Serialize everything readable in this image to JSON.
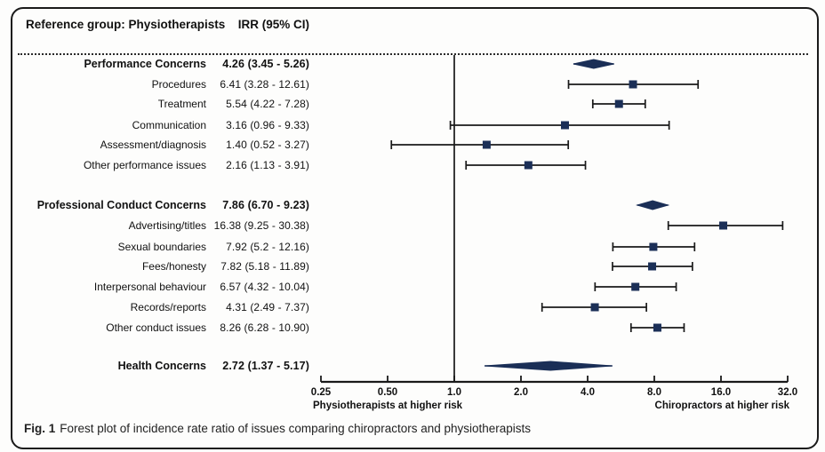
{
  "header": {
    "reference_label": "Reference group: Physiotherapists",
    "irr_label": "IRR (95% CI)"
  },
  "axis": {
    "tick_labels": [
      "0.25",
      "0.50",
      "1.0",
      "2.0",
      "4.0",
      "8.0",
      "16.0",
      "32.0"
    ],
    "tick_values": [
      0.25,
      0.5,
      1,
      2,
      4,
      8,
      16,
      32
    ],
    "left_label": "Physiotherapists at higher risk",
    "right_label": "Chiropractors at higher risk"
  },
  "caption": {
    "prefix": "Fig. 1",
    "text": "Forest plot of incidence rate ratio of issues comparing chiropractors and physiotherapists"
  },
  "colors": {
    "marker": "#1b2f57",
    "error_bar": "#1a1a1a",
    "axis": "#1a1a1a"
  },
  "chart_data": {
    "type": "forest",
    "x_scale": "log2",
    "xlim": [
      0.25,
      32
    ],
    "reference_value": 1.0,
    "rows": [
      {
        "label": "Performance Concerns",
        "display": "4.26 (3.45 - 5.26)",
        "est": 4.26,
        "lo": 3.45,
        "hi": 5.26,
        "style": "summary"
      },
      {
        "label": "Procedures",
        "display": "6.41 (3.28 - 12.61)",
        "est": 6.41,
        "lo": 3.28,
        "hi": 12.61,
        "style": "item"
      },
      {
        "label": "Treatment",
        "display": "5.54 (4.22 - 7.28)",
        "est": 5.54,
        "lo": 4.22,
        "hi": 7.28,
        "style": "item"
      },
      {
        "label": "Communication",
        "display": "3.16 (0.96 - 9.33)",
        "est": 3.16,
        "lo": 0.96,
        "hi": 9.33,
        "style": "item"
      },
      {
        "label": "Assessment/diagnosis",
        "display": "1.40 (0.52 - 3.27)",
        "est": 1.4,
        "lo": 0.52,
        "hi": 3.27,
        "style": "item"
      },
      {
        "label": "Other performance issues",
        "display": "2.16 (1.13 - 3.91)",
        "est": 2.16,
        "lo": 1.13,
        "hi": 3.91,
        "style": "item"
      },
      {
        "label": "Professional Conduct Concerns",
        "display": "7.86 (6.70 - 9.23)",
        "est": 7.86,
        "lo": 6.7,
        "hi": 9.23,
        "style": "summary"
      },
      {
        "label": "Advertising/titles",
        "display": "16.38 (9.25 - 30.38)",
        "est": 16.38,
        "lo": 9.25,
        "hi": 30.38,
        "style": "item"
      },
      {
        "label": "Sexual boundaries",
        "display": "7.92 (5.2 - 12.16)",
        "est": 7.92,
        "lo": 5.2,
        "hi": 12.16,
        "style": "item"
      },
      {
        "label": "Fees/honesty",
        "display": "7.82 (5.18 - 11.89)",
        "est": 7.82,
        "lo": 5.18,
        "hi": 11.89,
        "style": "item"
      },
      {
        "label": "Interpersonal behaviour",
        "display": "6.57 (4.32 - 10.04)",
        "est": 6.57,
        "lo": 4.32,
        "hi": 10.04,
        "style": "item"
      },
      {
        "label": "Records/reports",
        "display": "4.31 (2.49 - 7.37)",
        "est": 4.31,
        "lo": 2.49,
        "hi": 7.37,
        "style": "item"
      },
      {
        "label": "Other conduct issues",
        "display": "8.26 (6.28 - 10.90)",
        "est": 8.26,
        "lo": 6.28,
        "hi": 10.9,
        "style": "item"
      },
      {
        "label": "Health Concerns",
        "display": "2.72 (1.37 - 5.17)",
        "est": 2.72,
        "lo": 1.37,
        "hi": 5.17,
        "style": "summary"
      }
    ]
  }
}
